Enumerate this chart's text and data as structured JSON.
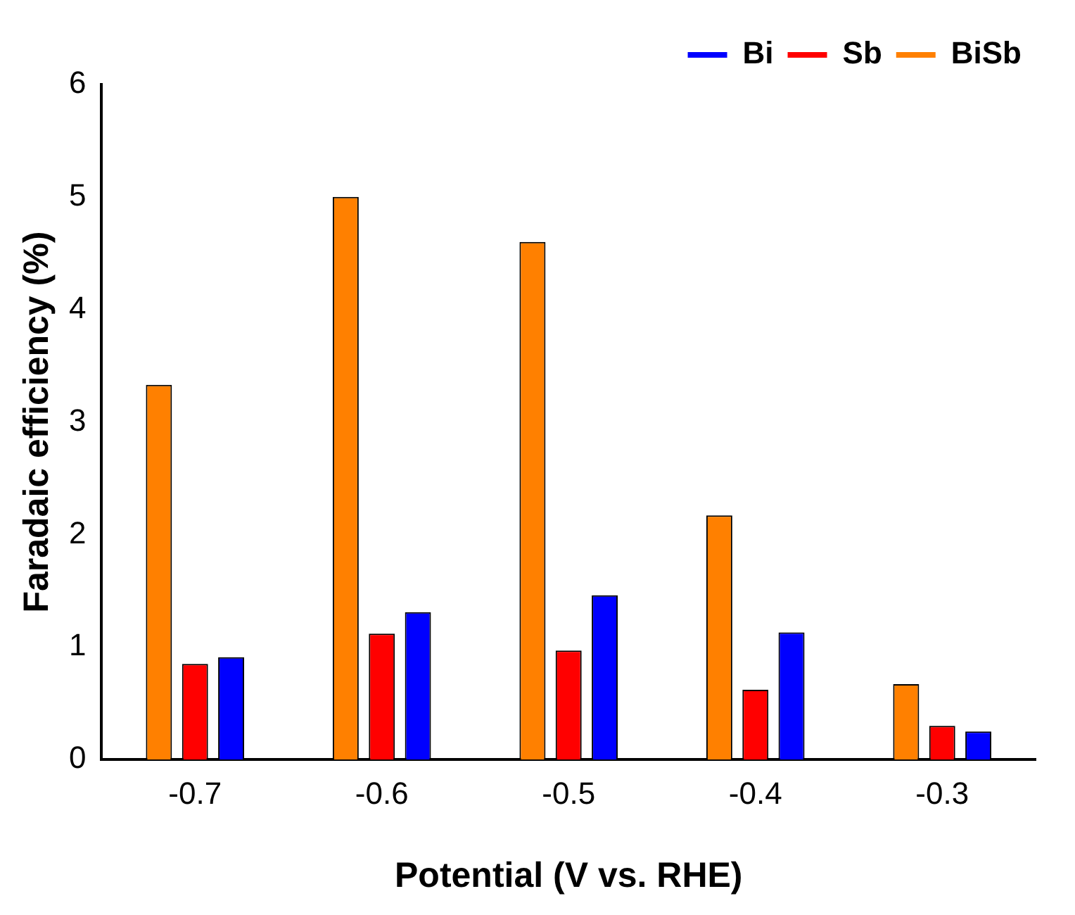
{
  "chart_data": {
    "type": "bar",
    "xlabel": "Potential (V vs. RHE)",
    "ylabel": "Faradaic efficiency (%)",
    "categories": [
      "-0.7",
      "-0.6",
      "-0.5",
      "-0.4",
      "-0.3"
    ],
    "series": [
      {
        "name": "BiSb",
        "color": "#ff8000",
        "values": [
          3.33,
          5.0,
          4.6,
          2.17,
          0.67
        ]
      },
      {
        "name": "Sb",
        "color": "#ff0000",
        "values": [
          0.85,
          1.12,
          0.97,
          0.62,
          0.3
        ]
      },
      {
        "name": "Bi",
        "color": "#0000ff",
        "values": [
          0.91,
          1.31,
          1.46,
          1.13,
          0.25
        ]
      }
    ],
    "ylim": [
      0,
      6
    ],
    "yticks": [
      0,
      1,
      2,
      3,
      4,
      5,
      6
    ],
    "grid": false,
    "legend": "top right"
  }
}
